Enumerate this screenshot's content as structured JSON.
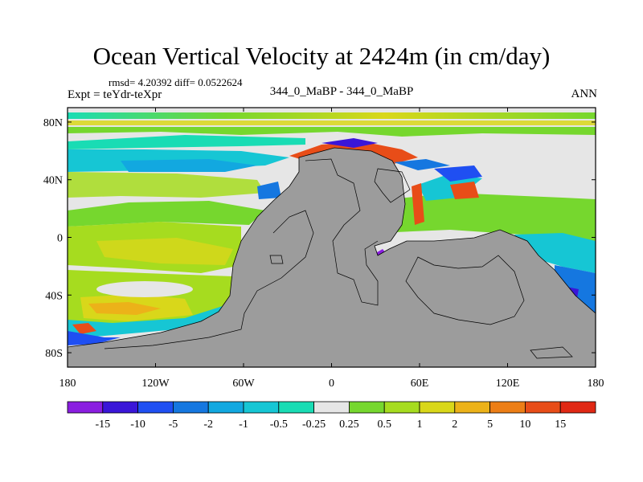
{
  "chart_data": {
    "type": "heatmap",
    "title": "Ocean Vertical Velocity at 2424m (in cm/day)",
    "stats_text": "rmsd= 4.20392 diff= 0.0522624",
    "experiment_text": "Expt = teYdr-teXpr",
    "runs_text": "344_0_MaBP - 344_0_MaBP",
    "season_text": "ANN",
    "xlim": [
      -180,
      180
    ],
    "ylim": [
      -90,
      90
    ],
    "x_ticks": [
      {
        "value": -180,
        "label": "180"
      },
      {
        "value": -120,
        "label": "120W"
      },
      {
        "value": -60,
        "label": "60W"
      },
      {
        "value": 0,
        "label": "0"
      },
      {
        "value": 60,
        "label": "60E"
      },
      {
        "value": 120,
        "label": "120E"
      },
      {
        "value": 180,
        "label": "180"
      }
    ],
    "y_ticks": [
      {
        "value": 80,
        "label": "80N"
      },
      {
        "value": 40,
        "label": "40N"
      },
      {
        "value": 0,
        "label": "0"
      },
      {
        "value": -40,
        "label": "40S"
      },
      {
        "value": -80,
        "label": "80S"
      }
    ],
    "colorbar": {
      "levels": [
        "-15",
        "-10",
        "-5",
        "-2",
        "-1",
        "-0.5",
        "-0.25",
        "0.25",
        "0.5",
        "1",
        "2",
        "5",
        "10",
        "15"
      ],
      "colors": [
        "#8a1ee0",
        "#3a16d8",
        "#1f4ff2",
        "#1577e0",
        "#12a8e0",
        "#16c6d4",
        "#19dcb4",
        "#e6e6e6",
        "#76d72e",
        "#a6dc1f",
        "#d9d71a",
        "#ecb219",
        "#ec7e16",
        "#e84d18",
        "#e02814"
      ]
    },
    "land_color": "#9c9c9c"
  }
}
